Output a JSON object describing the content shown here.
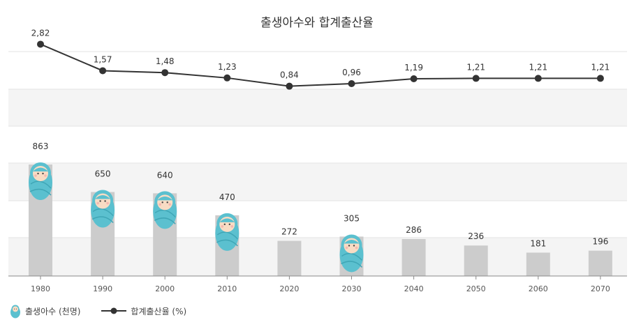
{
  "chart_data": {
    "type": "bar+line",
    "title": "출생아수와 합계출산율",
    "categories": [
      "1980",
      "1990",
      "2000",
      "2010",
      "2020",
      "2030",
      "2040",
      "2050",
      "2060",
      "2070"
    ],
    "series": [
      {
        "name": "출생아수 (천명)",
        "type": "bar",
        "values": [
          863,
          650,
          640,
          470,
          272,
          305,
          286,
          236,
          181,
          196
        ],
        "labels": [
          "863",
          "650",
          "640",
          "470",
          "272",
          "305",
          "286",
          "236",
          "181",
          "196"
        ],
        "baby_icon": [
          true,
          true,
          true,
          true,
          false,
          true,
          false,
          false,
          false,
          false
        ],
        "color": "#cccccc"
      },
      {
        "name": "합계출산율 (%)",
        "type": "line",
        "values": [
          2.82,
          1.57,
          1.48,
          1.23,
          0.84,
          0.96,
          1.19,
          1.21,
          1.21,
          1.21
        ],
        "labels": [
          "2,82",
          "1,57",
          "1,48",
          "1,23",
          "0,84",
          "0,96",
          "1,19",
          "1,21",
          "1,21",
          "1,21"
        ],
        "color": "#333333"
      }
    ],
    "grid": true,
    "legend_position": "bottom-left"
  },
  "colors": {
    "bar": "#cccccc",
    "line": "#333333",
    "band_shade": "#f4f4f4",
    "baby_wrap": "#5bc0cf",
    "baby_face": "#f8dcc4"
  }
}
